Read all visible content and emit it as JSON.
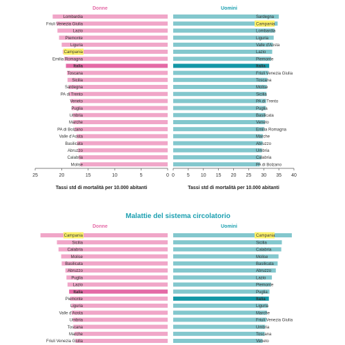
{
  "colors": {
    "donne": "#f0a6c8",
    "donne_italia": "#e46aa6",
    "uomini": "#83c7cd",
    "uomini_italia": "#1397a6",
    "donne_title": "#e46aa6",
    "uomini_title": "#1a9fb0",
    "highlight": "#fff36a",
    "section_title": "#1a9fb0",
    "axis": "#555555"
  },
  "chart_data": [
    {
      "type": "bar",
      "orientation": "horizontal",
      "panel_title": "Donne",
      "title": "",
      "xlabel": "Tassi std di mortalità per 10.000 abitanti",
      "xlim": [
        25,
        0
      ],
      "xticks": [
        25,
        20,
        15,
        10,
        5,
        0
      ],
      "grid": false,
      "categories": [
        "Lombardia",
        "Friuli Venezia Giulia",
        "Lazio",
        "Piemonte",
        "Liguria",
        "Campania",
        "Emilia Romagna",
        "Italia",
        "Toscana",
        "Sicilia",
        "Sardegna",
        "PA di Trento",
        "Veneto",
        "Puglia",
        "Umbria",
        "Marche",
        "PA di Bolzano",
        "Valle d'Aosta",
        "Basilicata",
        "Abruzzo",
        "Calabria",
        "Molise"
      ],
      "values": [
        21.7,
        21.0,
        20.8,
        20.5,
        20.0,
        19.8,
        19.5,
        19.2,
        19.0,
        18.9,
        18.7,
        18.6,
        18.3,
        18.1,
        17.9,
        17.8,
        17.6,
        17.2,
        17.1,
        16.9,
        16.8,
        16.5
      ],
      "highlighted": [
        "Campania"
      ],
      "bold": [
        "Italia"
      ]
    },
    {
      "type": "bar",
      "orientation": "horizontal",
      "panel_title": "Uomini",
      "title": "",
      "xlabel": "Tassi std di mortalità per 10.000 abitanti",
      "xlim": [
        0,
        40
      ],
      "xticks": [
        0,
        5,
        10,
        15,
        20,
        25,
        30,
        35,
        40
      ],
      "grid": false,
      "categories": [
        "Sardegna",
        "Campania",
        "Lombardia",
        "Liguria",
        "Valle d'Aosta",
        "Lazio",
        "Piemonte",
        "Italia",
        "Friuli Venezia Giulia",
        "Toscana",
        "Molise",
        "Sicilia",
        "PA di Trento",
        "Puglia",
        "Basilicata",
        "Veneto",
        "Emilia Romagna",
        "Marche",
        "Abruzzo",
        "Umbria",
        "Calabria",
        "PA di Bolzano"
      ],
      "values": [
        35.0,
        34.6,
        33.6,
        33.3,
        33.0,
        32.8,
        32.4,
        31.8,
        31.5,
        31.2,
        31.0,
        30.9,
        30.8,
        30.7,
        30.5,
        30.4,
        30.1,
        29.7,
        29.6,
        29.4,
        29.2,
        28.7
      ],
      "highlighted": [
        "Campania"
      ],
      "bold": [
        "Italia"
      ]
    },
    {
      "type": "bar",
      "orientation": "horizontal",
      "panel_title": "Donne",
      "title": "Malattie del sistema circolatorio",
      "xlabel": "",
      "xlim": [
        25,
        0
      ],
      "grid": false,
      "categories": [
        "Campania",
        "Sicilia",
        "Calabria",
        "Molise",
        "Basilicata",
        "Abruzzo",
        "Puglia",
        "Lazio",
        "Italia",
        "Piemonte",
        "Liguria",
        "Valle d'Aosta",
        "Umbria",
        "Toscana",
        "Marche",
        "Friuli Venezia Giulia"
      ],
      "values": [
        24.0,
        20.9,
        20.6,
        20.1,
        20.0,
        19.3,
        19.1,
        18.9,
        18.6,
        18.4,
        18.2,
        18.1,
        17.9,
        17.8,
        17.6,
        17.4
      ],
      "highlighted": [
        "Campania"
      ],
      "bold": [
        "Italia"
      ]
    },
    {
      "type": "bar",
      "orientation": "horizontal",
      "panel_title": "Uomini",
      "title": "Malattie del sistema circolatorio",
      "xlabel": "",
      "xlim": [
        0,
        40
      ],
      "grid": false,
      "categories": [
        "Campania",
        "Sicilia",
        "Calabria",
        "Molise",
        "Basilicata",
        "Abruzzo",
        "Lazio",
        "Piemonte",
        "Puglia",
        "Italia",
        "Liguria",
        "Marche",
        "Friuli Venezia Giulia",
        "Umbria",
        "Toscana",
        "Veneto"
      ],
      "values": [
        39.3,
        36.0,
        35.8,
        34.9,
        34.6,
        34.0,
        32.7,
        32.4,
        31.9,
        31.7,
        31.4,
        31.1,
        30.9,
        30.5,
        30.3,
        29.6
      ],
      "highlighted": [
        "Campania"
      ],
      "bold": [
        "Italia"
      ]
    }
  ]
}
